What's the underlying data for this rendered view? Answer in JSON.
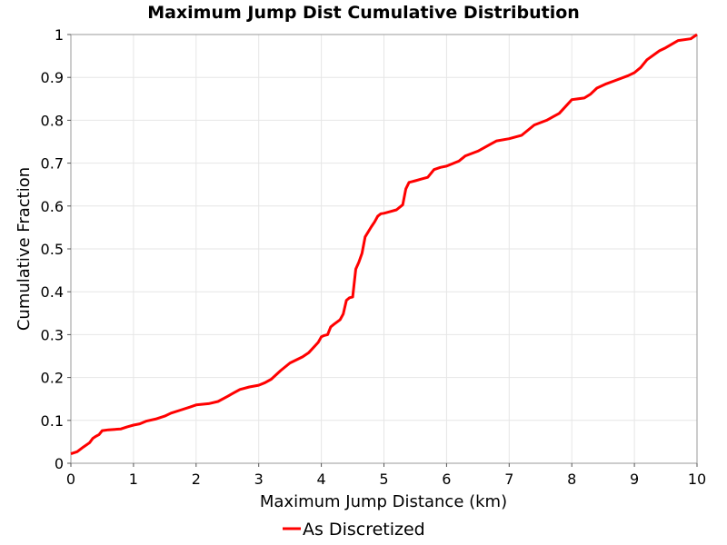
{
  "chart_data": {
    "type": "line",
    "title": "Maximum Jump Dist Cumulative Distribution",
    "xlabel": "Maximum Jump Distance (km)",
    "ylabel": "Cumulative Fraction",
    "xlim": [
      0,
      10
    ],
    "ylim": [
      0,
      1
    ],
    "xticks": [
      "0",
      "1",
      "2",
      "3",
      "4",
      "5",
      "6",
      "7",
      "8",
      "9",
      "10"
    ],
    "yticks": [
      "0",
      "0.1",
      "0.2",
      "0.3",
      "0.4",
      "0.5",
      "0.6",
      "0.7",
      "0.8",
      "0.9",
      "1"
    ],
    "grid": true,
    "legend_position": "bottom-center",
    "series": [
      {
        "name": "As Discretized",
        "color": "#ff0000",
        "x": [
          0,
          0.1,
          0.2,
          0.3,
          0.35,
          0.4,
          0.45,
          0.5,
          0.6,
          0.8,
          0.9,
          1.0,
          1.1,
          1.2,
          1.35,
          1.5,
          1.6,
          1.75,
          1.9,
          2.0,
          2.2,
          2.35,
          2.5,
          2.6,
          2.7,
          2.85,
          3.0,
          3.1,
          3.2,
          3.35,
          3.5,
          3.7,
          3.8,
          3.95,
          4.0,
          4.05,
          4.1,
          4.15,
          4.2,
          4.3,
          4.35,
          4.4,
          4.45,
          4.5,
          4.55,
          4.6,
          4.65,
          4.7,
          4.8,
          4.85,
          4.9,
          4.95,
          5.0,
          5.1,
          5.2,
          5.3,
          5.35,
          5.4,
          5.45,
          5.5,
          5.6,
          5.7,
          5.8,
          5.9,
          6.0,
          6.2,
          6.3,
          6.5,
          6.7,
          6.8,
          7.0,
          7.1,
          7.2,
          7.4,
          7.6,
          7.7,
          7.8,
          7.9,
          8.0,
          8.2,
          8.3,
          8.4,
          8.55,
          8.7,
          8.9,
          9.0,
          9.1,
          9.2,
          9.4,
          9.5,
          9.7,
          9.9,
          10.0
        ],
        "y": [
          0.022,
          0.027,
          0.038,
          0.048,
          0.058,
          0.063,
          0.067,
          0.076,
          0.078,
          0.08,
          0.085,
          0.089,
          0.092,
          0.098,
          0.103,
          0.11,
          0.117,
          0.124,
          0.131,
          0.136,
          0.139,
          0.144,
          0.156,
          0.164,
          0.172,
          0.178,
          0.182,
          0.188,
          0.196,
          0.216,
          0.234,
          0.248,
          0.258,
          0.282,
          0.295,
          0.298,
          0.3,
          0.318,
          0.324,
          0.335,
          0.348,
          0.38,
          0.386,
          0.388,
          0.453,
          0.469,
          0.49,
          0.528,
          0.552,
          0.563,
          0.576,
          0.582,
          0.583,
          0.587,
          0.591,
          0.603,
          0.64,
          0.655,
          0.657,
          0.659,
          0.663,
          0.667,
          0.685,
          0.69,
          0.693,
          0.705,
          0.717,
          0.728,
          0.744,
          0.752,
          0.757,
          0.761,
          0.765,
          0.789,
          0.8,
          0.808,
          0.816,
          0.832,
          0.848,
          0.852,
          0.861,
          0.875,
          0.885,
          0.893,
          0.904,
          0.911,
          0.923,
          0.941,
          0.962,
          0.969,
          0.986,
          0.99,
          1.0
        ]
      }
    ]
  }
}
